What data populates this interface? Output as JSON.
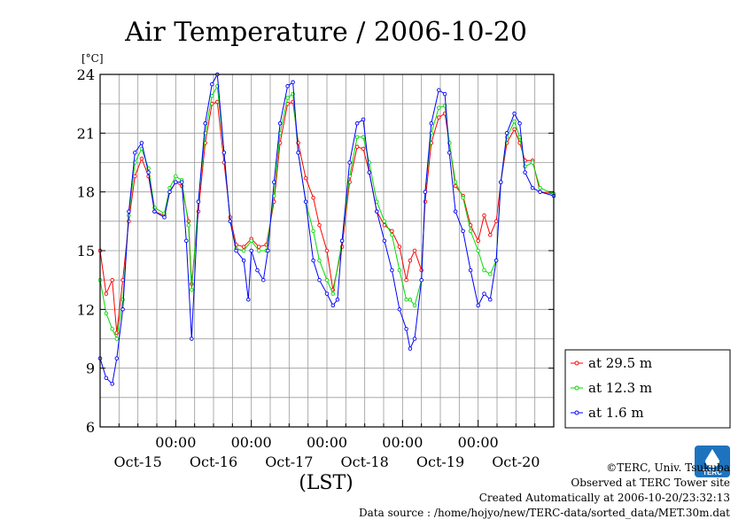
{
  "chart_data": {
    "type": "line",
    "title": "Air Temperature / 2006-10-20",
    "ylabel": "[°C]",
    "xlabel": "(LST)",
    "ylim": [
      6,
      24
    ],
    "xlim": [
      0,
      6
    ],
    "yticks": [
      6,
      9,
      12,
      15,
      18,
      21,
      24
    ],
    "grid": true,
    "legend_placement": "right",
    "x_time_labels": [
      "00:00",
      "00:00",
      "00:00",
      "00:00",
      "00:00"
    ],
    "x_time_positions": [
      1,
      2,
      3,
      4,
      5
    ],
    "x_date_labels": [
      "Oct-15",
      "Oct-16",
      "Oct-17",
      "Oct-18",
      "Oct-19",
      "Oct-20"
    ],
    "x_date_positions": [
      0.5,
      1.5,
      2.5,
      3.5,
      4.5,
      5.5
    ],
    "series": [
      {
        "name": "at 29.5 m",
        "color": "#ff0000",
        "points": [
          [
            0.0,
            15.0
          ],
          [
            0.08,
            12.8
          ],
          [
            0.16,
            13.5
          ],
          [
            0.22,
            10.8
          ],
          [
            0.3,
            13.5
          ],
          [
            0.38,
            16.5
          ],
          [
            0.46,
            18.8
          ],
          [
            0.55,
            19.7
          ],
          [
            0.64,
            18.8
          ],
          [
            0.72,
            17.0
          ],
          [
            0.85,
            16.8
          ],
          [
            0.92,
            18.0
          ],
          [
            1.0,
            18.5
          ],
          [
            1.08,
            18.3
          ],
          [
            1.17,
            16.5
          ],
          [
            1.21,
            13.3
          ],
          [
            1.3,
            17.0
          ],
          [
            1.39,
            20.5
          ],
          [
            1.48,
            22.5
          ],
          [
            1.55,
            22.6
          ],
          [
            1.64,
            19.5
          ],
          [
            1.72,
            16.7
          ],
          [
            1.8,
            15.3
          ],
          [
            1.9,
            15.2
          ],
          [
            2.0,
            15.6
          ],
          [
            2.1,
            15.2
          ],
          [
            2.2,
            15.3
          ],
          [
            2.3,
            17.5
          ],
          [
            2.38,
            20.5
          ],
          [
            2.48,
            22.5
          ],
          [
            2.55,
            22.6
          ],
          [
            2.62,
            20.5
          ],
          [
            2.72,
            18.7
          ],
          [
            2.82,
            17.7
          ],
          [
            2.9,
            16.3
          ],
          [
            3.0,
            15.0
          ],
          [
            3.08,
            13.0
          ],
          [
            3.2,
            15.2
          ],
          [
            3.3,
            18.5
          ],
          [
            3.4,
            20.3
          ],
          [
            3.48,
            20.2
          ],
          [
            3.56,
            19.0
          ],
          [
            3.66,
            17.0
          ],
          [
            3.76,
            16.3
          ],
          [
            3.86,
            16.0
          ],
          [
            3.96,
            15.2
          ],
          [
            4.05,
            13.5
          ],
          [
            4.1,
            14.5
          ],
          [
            4.16,
            15.0
          ],
          [
            4.25,
            14.0
          ],
          [
            4.3,
            17.5
          ],
          [
            4.38,
            20.5
          ],
          [
            4.48,
            21.8
          ],
          [
            4.56,
            22.0
          ],
          [
            4.62,
            20.5
          ],
          [
            4.7,
            18.3
          ],
          [
            4.8,
            17.8
          ],
          [
            4.9,
            16.3
          ],
          [
            5.0,
            15.5
          ],
          [
            5.08,
            16.8
          ],
          [
            5.16,
            15.8
          ],
          [
            5.24,
            16.5
          ],
          [
            5.3,
            18.5
          ],
          [
            5.38,
            20.5
          ],
          [
            5.48,
            21.2
          ],
          [
            5.55,
            20.5
          ],
          [
            5.62,
            19.6
          ],
          [
            5.72,
            19.6
          ],
          [
            5.82,
            18.0
          ],
          [
            6.0,
            17.9
          ]
        ]
      },
      {
        "name": "at 12.3 m",
        "color": "#00dd00",
        "points": [
          [
            0.0,
            13.5
          ],
          [
            0.08,
            11.8
          ],
          [
            0.16,
            11.0
          ],
          [
            0.22,
            10.5
          ],
          [
            0.3,
            12.5
          ],
          [
            0.38,
            16.8
          ],
          [
            0.46,
            19.5
          ],
          [
            0.55,
            20.2
          ],
          [
            0.64,
            19.2
          ],
          [
            0.72,
            17.2
          ],
          [
            0.85,
            16.9
          ],
          [
            0.92,
            18.2
          ],
          [
            1.0,
            18.8
          ],
          [
            1.08,
            18.6
          ],
          [
            1.17,
            16.3
          ],
          [
            1.21,
            13.0
          ],
          [
            1.3,
            17.5
          ],
          [
            1.39,
            21.0
          ],
          [
            1.48,
            22.9
          ],
          [
            1.55,
            23.4
          ],
          [
            1.64,
            20.0
          ],
          [
            1.72,
            16.5
          ],
          [
            1.8,
            15.1
          ],
          [
            1.9,
            15.0
          ],
          [
            2.0,
            15.5
          ],
          [
            2.1,
            15.0
          ],
          [
            2.2,
            15.0
          ],
          [
            2.3,
            17.8
          ],
          [
            2.38,
            21.0
          ],
          [
            2.48,
            22.8
          ],
          [
            2.55,
            23.0
          ],
          [
            2.62,
            20.0
          ],
          [
            2.72,
            17.5
          ],
          [
            2.82,
            16.0
          ],
          [
            2.9,
            14.5
          ],
          [
            3.0,
            13.5
          ],
          [
            3.08,
            12.8
          ],
          [
            3.2,
            15.5
          ],
          [
            3.3,
            18.8
          ],
          [
            3.4,
            20.8
          ],
          [
            3.48,
            20.8
          ],
          [
            3.56,
            19.5
          ],
          [
            3.66,
            17.5
          ],
          [
            3.76,
            16.5
          ],
          [
            3.86,
            15.8
          ],
          [
            3.96,
            14.0
          ],
          [
            4.05,
            12.5
          ],
          [
            4.1,
            12.5
          ],
          [
            4.16,
            12.2
          ],
          [
            4.25,
            13.5
          ],
          [
            4.3,
            18.0
          ],
          [
            4.38,
            21.0
          ],
          [
            4.48,
            22.3
          ],
          [
            4.56,
            22.4
          ],
          [
            4.62,
            20.5
          ],
          [
            4.7,
            18.5
          ],
          [
            4.8,
            17.7
          ],
          [
            4.9,
            16.0
          ],
          [
            5.0,
            15.0
          ],
          [
            5.08,
            14.0
          ],
          [
            5.16,
            13.8
          ],
          [
            5.24,
            14.5
          ],
          [
            5.3,
            18.5
          ],
          [
            5.38,
            20.8
          ],
          [
            5.48,
            21.6
          ],
          [
            5.55,
            20.8
          ],
          [
            5.62,
            19.3
          ],
          [
            5.72,
            19.5
          ],
          [
            5.82,
            18.2
          ],
          [
            6.0,
            17.9
          ]
        ]
      },
      {
        "name": "at 1.6 m",
        "color": "#0000ff",
        "points": [
          [
            0.0,
            9.5
          ],
          [
            0.08,
            8.5
          ],
          [
            0.16,
            8.2
          ],
          [
            0.22,
            9.5
          ],
          [
            0.3,
            12.0
          ],
          [
            0.38,
            17.0
          ],
          [
            0.46,
            20.0
          ],
          [
            0.55,
            20.5
          ],
          [
            0.64,
            19.0
          ],
          [
            0.72,
            17.0
          ],
          [
            0.85,
            16.7
          ],
          [
            0.92,
            18.0
          ],
          [
            1.0,
            18.5
          ],
          [
            1.08,
            18.5
          ],
          [
            1.14,
            15.5
          ],
          [
            1.21,
            10.5
          ],
          [
            1.3,
            17.5
          ],
          [
            1.39,
            21.5
          ],
          [
            1.48,
            23.5
          ],
          [
            1.55,
            24.0
          ],
          [
            1.64,
            20.0
          ],
          [
            1.72,
            16.5
          ],
          [
            1.8,
            15.0
          ],
          [
            1.9,
            14.5
          ],
          [
            1.96,
            12.5
          ],
          [
            2.0,
            15.0
          ],
          [
            2.08,
            14.0
          ],
          [
            2.16,
            13.5
          ],
          [
            2.22,
            15.0
          ],
          [
            2.3,
            18.5
          ],
          [
            2.38,
            21.5
          ],
          [
            2.48,
            23.4
          ],
          [
            2.55,
            23.6
          ],
          [
            2.62,
            20.0
          ],
          [
            2.72,
            17.5
          ],
          [
            2.82,
            14.5
          ],
          [
            2.9,
            13.5
          ],
          [
            3.0,
            12.8
          ],
          [
            3.08,
            12.2
          ],
          [
            3.14,
            12.5
          ],
          [
            3.2,
            15.5
          ],
          [
            3.3,
            19.5
          ],
          [
            3.4,
            21.5
          ],
          [
            3.48,
            21.7
          ],
          [
            3.56,
            19.0
          ],
          [
            3.66,
            17.0
          ],
          [
            3.76,
            15.5
          ],
          [
            3.86,
            14.0
          ],
          [
            3.96,
            12.0
          ],
          [
            4.05,
            11.0
          ],
          [
            4.1,
            10.0
          ],
          [
            4.16,
            10.5
          ],
          [
            4.25,
            13.5
          ],
          [
            4.3,
            18.0
          ],
          [
            4.38,
            21.5
          ],
          [
            4.48,
            23.2
          ],
          [
            4.56,
            23.0
          ],
          [
            4.62,
            20.0
          ],
          [
            4.7,
            17.0
          ],
          [
            4.8,
            16.0
          ],
          [
            4.9,
            14.0
          ],
          [
            5.0,
            12.2
          ],
          [
            5.08,
            12.8
          ],
          [
            5.16,
            12.5
          ],
          [
            5.24,
            14.5
          ],
          [
            5.3,
            18.5
          ],
          [
            5.38,
            21.0
          ],
          [
            5.48,
            22.0
          ],
          [
            5.55,
            21.5
          ],
          [
            5.62,
            19.0
          ],
          [
            5.72,
            18.2
          ],
          [
            5.82,
            18.0
          ],
          [
            6.0,
            17.8
          ]
        ]
      }
    ]
  },
  "footer": {
    "credit": "©TERC, Univ. Tsukuba",
    "site": "Observed at TERC Tower site",
    "created": "Created Automatically at 2006-10-20/23:32:13",
    "source": "Data source : /home/hojyo/new/TERC-data/sorted_data/MET.30m.dat"
  },
  "logo": {
    "text": "TERC",
    "color": "#1e73be"
  }
}
